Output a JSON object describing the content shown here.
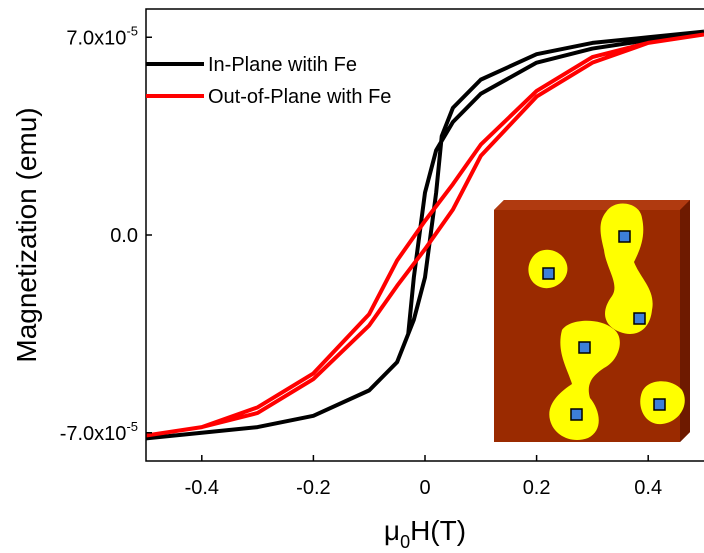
{
  "chart_data": {
    "type": "line",
    "ylabel": "Magnetization (emu)",
    "xlabel": {
      "symbol": "μ",
      "subscript": "0",
      "text": "H(T)"
    },
    "xlim": [
      -0.5,
      0.5
    ],
    "xticks": [
      -0.4,
      -0.2,
      0.0,
      0.2,
      0.4
    ],
    "ylim": [
      -8e-05,
      8e-05
    ],
    "yticks": [
      {
        "value": -7e-05,
        "label": "-7.0x10",
        "label_exponent": "-5"
      },
      {
        "value": 0,
        "label": "0.0"
      },
      {
        "value": 7e-05,
        "label": "7.0x10",
        "label_exponent": "-5"
      }
    ],
    "grid": false,
    "legend": "upper-left",
    "series": [
      {
        "name": "In-Plane witih Fe",
        "color": "#000000",
        "x": [
          0.5,
          0.4,
          0.3,
          0.2,
          0.1,
          0.05,
          0.02,
          0.0,
          -0.01,
          -0.02,
          -0.03,
          -0.05,
          -0.1,
          -0.2,
          -0.3,
          -0.4,
          -0.5,
          -0.4,
          -0.3,
          -0.2,
          -0.1,
          -0.05,
          -0.02,
          0.0,
          0.01,
          0.02,
          0.03,
          0.05,
          0.1,
          0.2,
          0.3,
          0.4,
          0.5
        ],
        "values": [
          7.2e-05,
          6.9e-05,
          6.6e-05,
          6.1e-05,
          5e-05,
          4e-05,
          3e-05,
          1.5e-05,
          0.0,
          -1.5e-05,
          -3.5e-05,
          -4.5e-05,
          -5.5e-05,
          -6.4e-05,
          -6.8e-05,
          -7e-05,
          -7.2e-05,
          -7e-05,
          -6.8e-05,
          -6.4e-05,
          -5.5e-05,
          -4.5e-05,
          -3e-05,
          -1.5e-05,
          0.0,
          1.5e-05,
          3.5e-05,
          4.5e-05,
          5.5e-05,
          6.4e-05,
          6.8e-05,
          7e-05,
          7.2e-05
        ]
      },
      {
        "name": "Out-of-Plane with Fe",
        "color": "#ff0000",
        "x": [
          0.5,
          0.4,
          0.3,
          0.2,
          0.1,
          0.05,
          0.0,
          -0.05,
          -0.1,
          -0.2,
          -0.3,
          -0.4,
          -0.5,
          -0.4,
          -0.3,
          -0.2,
          -0.1,
          -0.05,
          0.0,
          0.05,
          0.1,
          0.2,
          0.3,
          0.4,
          0.5
        ],
        "values": [
          7.1e-05,
          6.8e-05,
          6.3e-05,
          5.1e-05,
          3.2e-05,
          1.8e-05,
          5e-06,
          -9e-06,
          -2.8e-05,
          -4.9e-05,
          -6.1e-05,
          -6.8e-05,
          -7.1e-05,
          -6.8e-05,
          -6.3e-05,
          -5.1e-05,
          -3.2e-05,
          -1.8e-05,
          -5e-06,
          9e-06,
          2.8e-05,
          4.9e-05,
          6.1e-05,
          6.8e-05,
          7.1e-05
        ]
      }
    ]
  }
}
